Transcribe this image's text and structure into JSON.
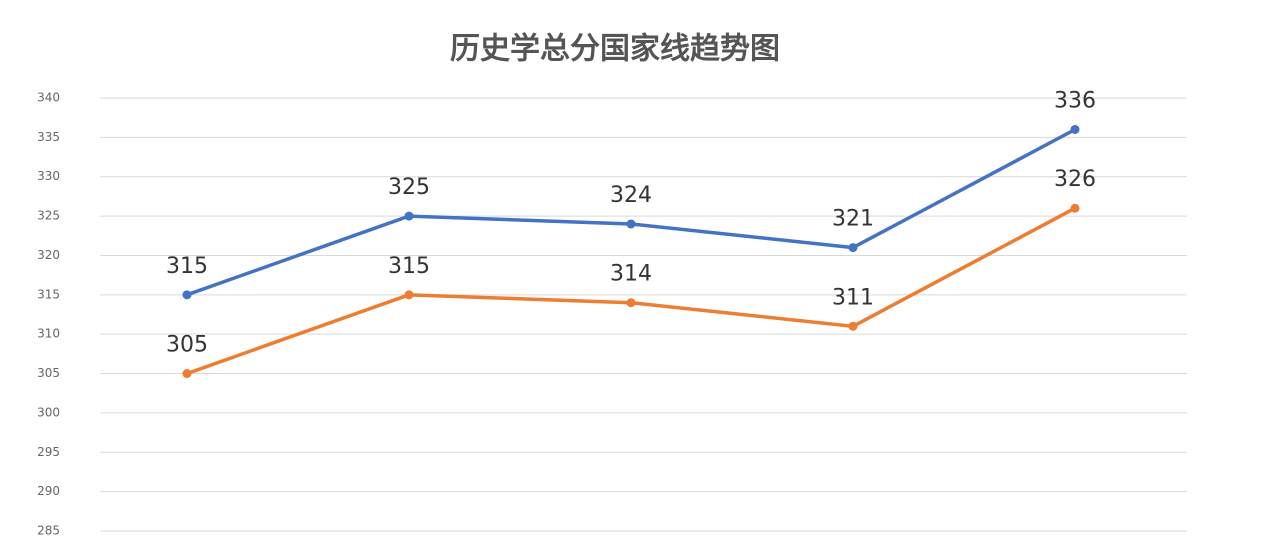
{
  "chart_data": {
    "type": "line",
    "title": "历史学总分国家线趋势图",
    "categories": [
      null,
      null,
      null,
      null,
      null
    ],
    "series": [
      {
        "color": "#4472c4",
        "values": [
          315,
          325,
          324,
          321,
          336
        ]
      },
      {
        "color": "#ed7d31",
        "values": [
          305,
          315,
          314,
          311,
          326
        ]
      }
    ],
    "ylim": [
      285,
      340
    ],
    "yticks": [
      285,
      290,
      295,
      300,
      305,
      310,
      315,
      320,
      325,
      330,
      335,
      340
    ],
    "grid": true,
    "data_labels": true
  }
}
